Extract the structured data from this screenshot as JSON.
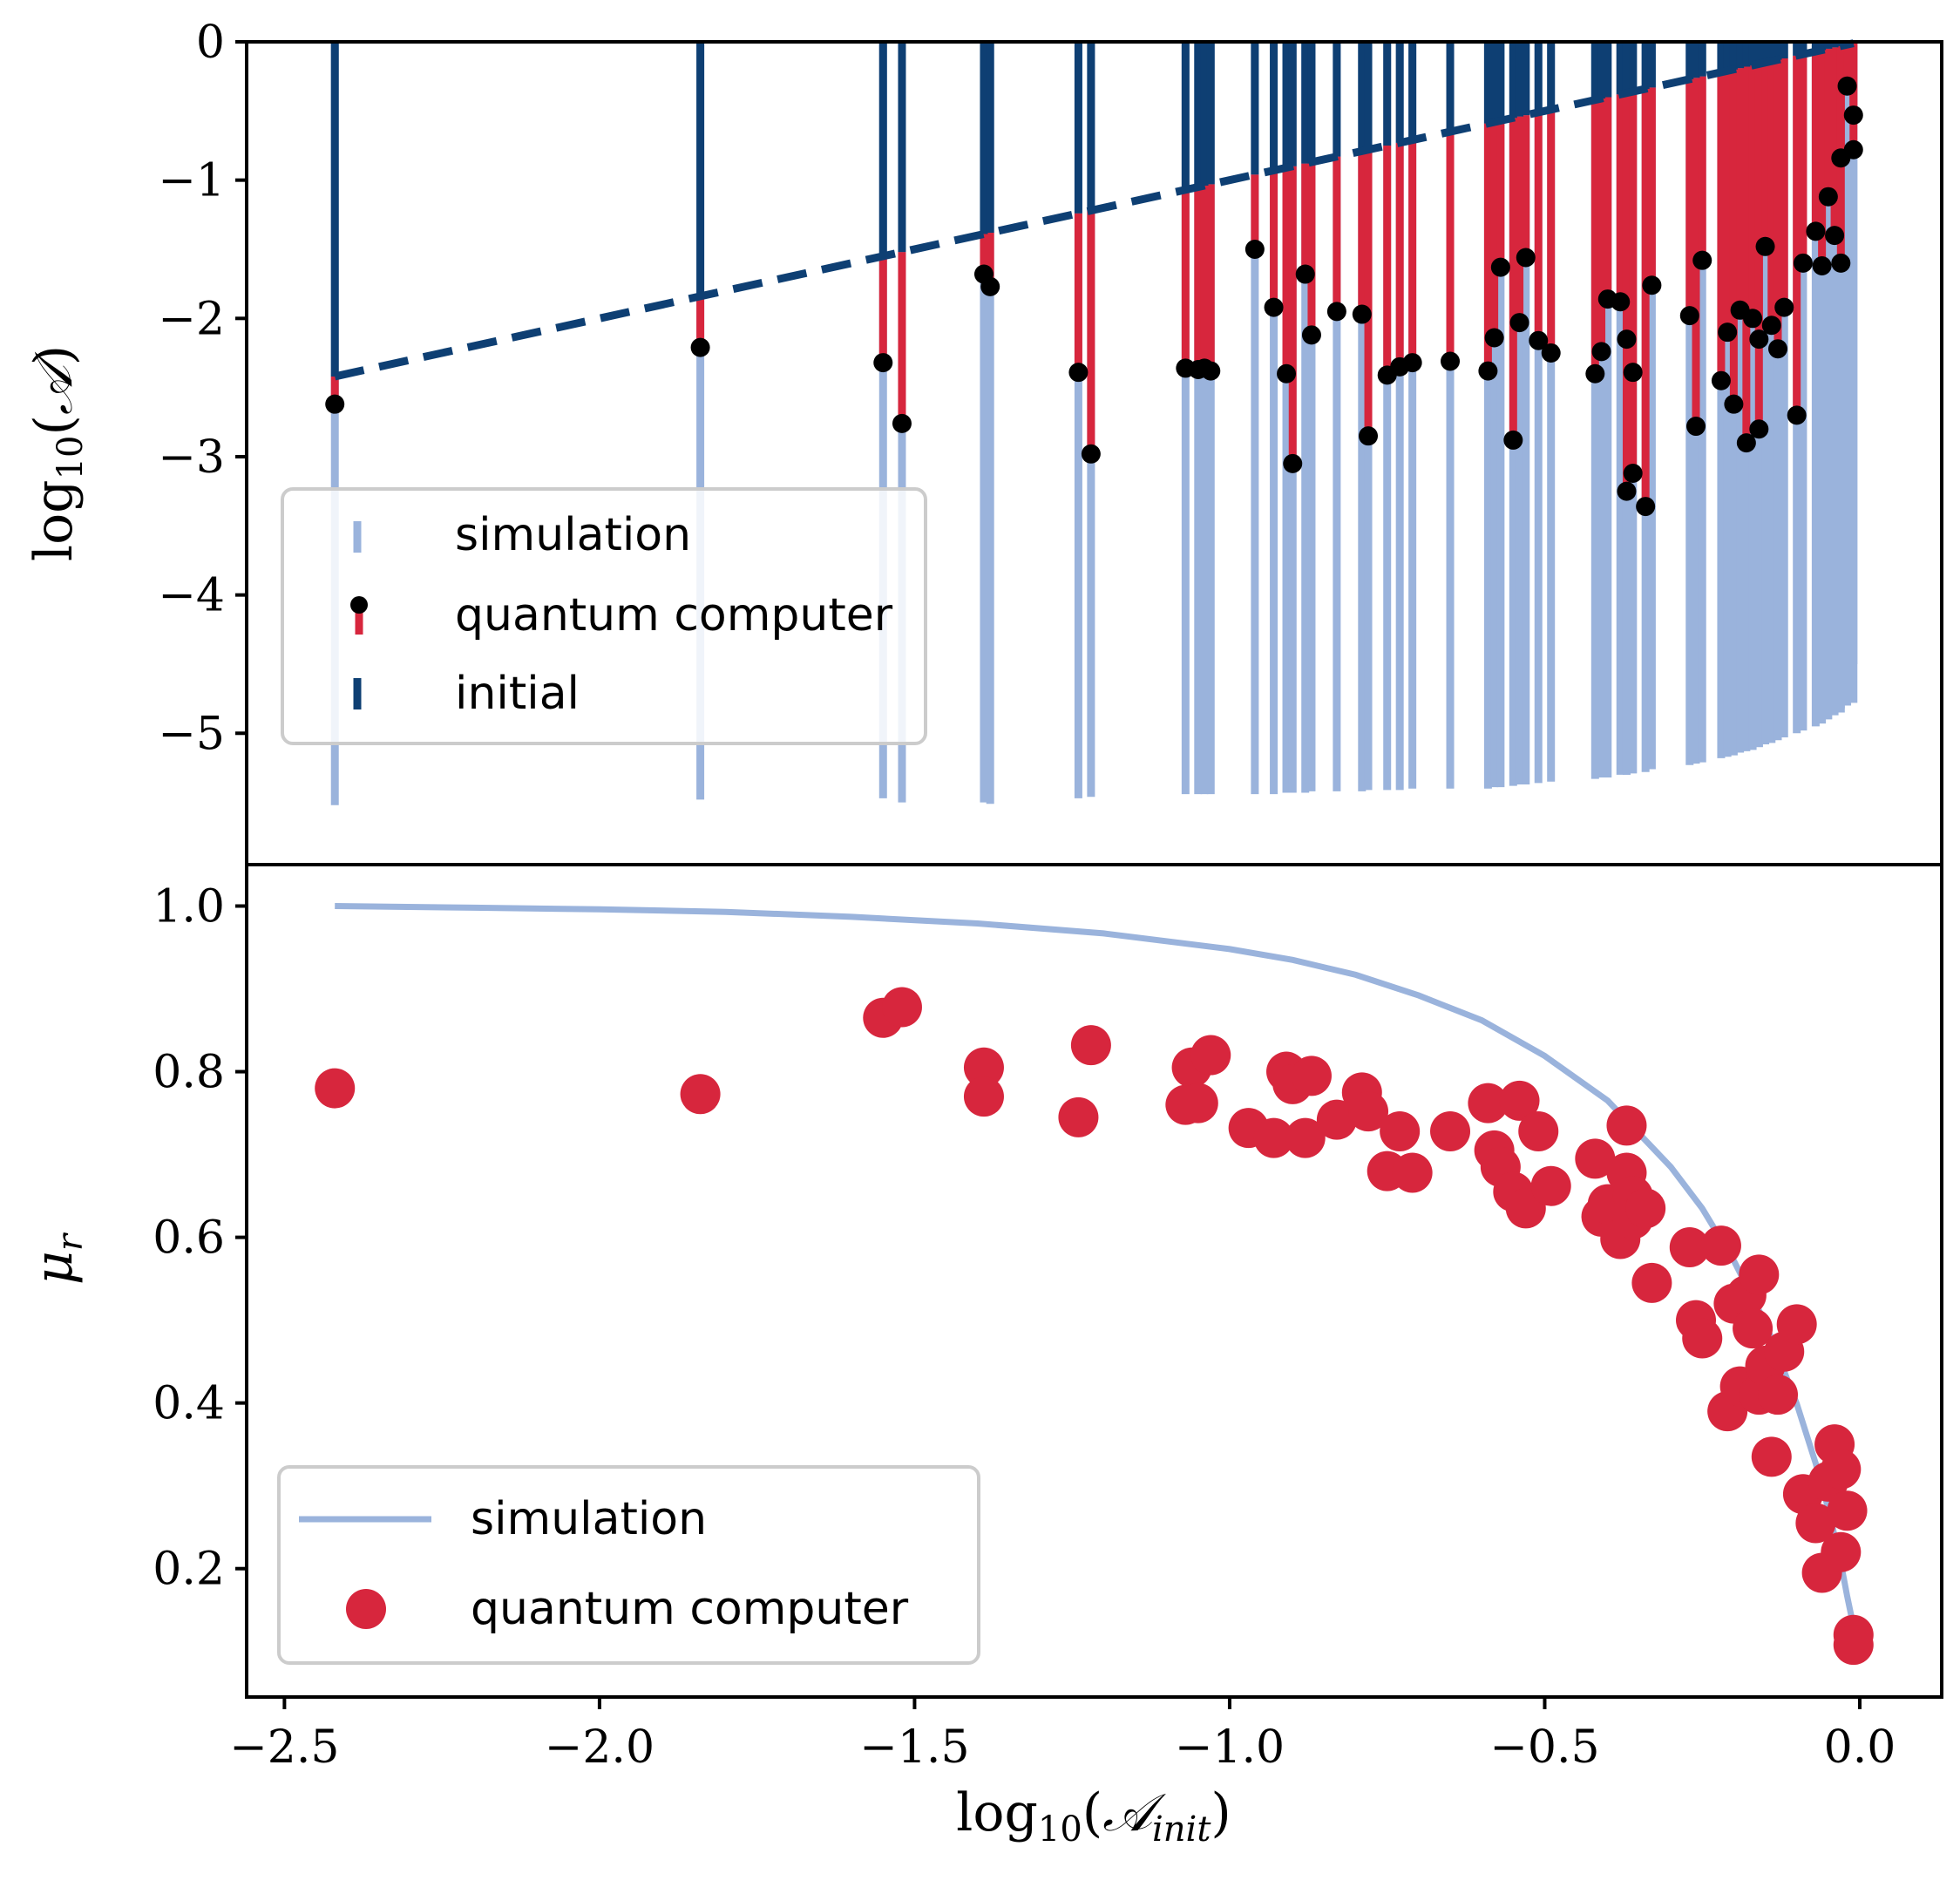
{
  "colors": {
    "simulation": "#9ab3dc",
    "quantum": "#d7263d",
    "initial": "#0e3f73",
    "marker_edge": "#000000",
    "legend_border": "#cccccc"
  },
  "chart_data": [
    {
      "type": "bar",
      "title": "",
      "xlabel": "",
      "ylabel": "log10(A)",
      "xlim": [
        -2.56,
        0.13
      ],
      "ylim": [
        -5.95,
        0
      ],
      "yticks": [
        0,
        -1,
        -2,
        -3,
        -4,
        -5
      ],
      "ytick_labels": [
        "0",
        "−1",
        "−2",
        "−3",
        "−4",
        "−5"
      ],
      "legend": {
        "position": "lower-left",
        "entries": [
          "simulation",
          "quantum computer",
          "initial"
        ]
      },
      "initial_line": {
        "x": [
          -2.42,
          -0.01
        ],
        "y": [
          -2.42,
          -0.01
        ]
      },
      "series_x": [
        -2.42,
        -1.84,
        -1.55,
        -1.52,
        -1.39,
        -1.38,
        -1.24,
        -1.22,
        -1.07,
        -1.05,
        -1.04,
        -1.03,
        -0.96,
        -0.93,
        -0.91,
        -0.9,
        -0.88,
        -0.87,
        -0.83,
        -0.79,
        -0.78,
        -0.75,
        -0.73,
        -0.71,
        -0.65,
        -0.59,
        -0.58,
        -0.57,
        -0.55,
        -0.54,
        -0.53,
        -0.51,
        -0.49,
        -0.42,
        -0.41,
        -0.4,
        -0.38,
        -0.37,
        -0.37,
        -0.36,
        -0.36,
        -0.34,
        -0.33,
        -0.27,
        -0.26,
        -0.25,
        -0.22,
        -0.21,
        -0.2,
        -0.19,
        -0.18,
        -0.17,
        -0.16,
        -0.16,
        -0.15,
        -0.14,
        -0.13,
        -0.12,
        -0.1,
        -0.09,
        -0.07,
        -0.06,
        -0.05,
        -0.04,
        -0.03,
        -0.03,
        -0.02,
        -0.01,
        -0.01
      ],
      "series": [
        {
          "name": "simulation",
          "values": [
            -5.52,
            -5.48,
            -5.47,
            -5.5,
            -5.5,
            -5.51,
            -5.47,
            -5.46,
            -5.44,
            -5.44,
            -5.44,
            -5.44,
            -5.44,
            -5.44,
            -5.43,
            -5.43,
            -5.43,
            -5.42,
            -5.42,
            -5.42,
            -5.41,
            -5.41,
            -5.41,
            -5.4,
            -5.4,
            -5.4,
            -5.39,
            -5.39,
            -5.38,
            -5.37,
            -5.37,
            -5.36,
            -5.35,
            -5.33,
            -5.32,
            -5.32,
            -5.3,
            -5.3,
            -5.3,
            -5.29,
            -5.29,
            -5.28,
            -5.26,
            -5.23,
            -5.22,
            -5.21,
            -5.18,
            -5.17,
            -5.16,
            -5.14,
            -5.13,
            -5.12,
            -5.1,
            -5.1,
            -5.08,
            -5.07,
            -5.05,
            -5.03,
            -5.0,
            -4.98,
            -4.95,
            -4.93,
            -4.9,
            -4.87,
            -4.85,
            -4.82,
            -4.8,
            -4.78,
            -4.5
          ]
        },
        {
          "name": "quantum computer",
          "values": [
            -2.62,
            -2.21,
            -2.32,
            -2.76,
            -1.68,
            -1.77,
            -2.39,
            -2.98,
            -2.36,
            -2.37,
            -2.36,
            -2.38,
            -1.5,
            -1.92,
            -2.4,
            -3.05,
            -1.68,
            -2.12,
            -1.95,
            -1.97,
            -2.85,
            -2.41,
            -2.35,
            -2.32,
            -2.31,
            -2.38,
            -2.14,
            -1.63,
            -2.88,
            -2.03,
            -1.56,
            -2.16,
            -2.25,
            -2.4,
            -2.24,
            -1.86,
            -1.88,
            -2.15,
            -3.25,
            -2.39,
            -3.12,
            -3.36,
            -1.76,
            -1.98,
            -2.78,
            -1.58,
            -2.45,
            -2.1,
            -2.62,
            -1.94,
            -2.9,
            -2.0,
            -2.15,
            -2.8,
            -1.48,
            -2.05,
            -2.22,
            -1.92,
            -2.7,
            -1.6,
            -1.37,
            -1.62,
            -1.12,
            -1.4,
            -0.84,
            -1.6,
            -0.32,
            -0.78,
            -0.53
          ]
        }
      ]
    },
    {
      "type": "line",
      "title": "",
      "xlabel": "log10(A_init)",
      "ylabel": "μr",
      "xlim": [
        -2.56,
        0.13
      ],
      "ylim": [
        0.045,
        1.05
      ],
      "xticks": [
        -2.5,
        -2.0,
        -1.5,
        -1.0,
        -0.5,
        0.0
      ],
      "xtick_labels": [
        "−2.5",
        "−2.0",
        "−1.5",
        "−1.0",
        "−0.5",
        "0.0"
      ],
      "yticks": [
        0.2,
        0.4,
        0.6,
        0.8,
        1.0
      ],
      "ytick_labels": [
        "0.2",
        "0.4",
        "0.6",
        "0.8",
        "1.0"
      ],
      "legend": {
        "position": "lower-left",
        "entries": [
          "simulation",
          "quantum computer"
        ]
      },
      "series": [
        {
          "name": "simulation",
          "kind": "line",
          "x": [
            -2.42,
            -2.2,
            -2.0,
            -1.8,
            -1.6,
            -1.4,
            -1.2,
            -1.0,
            -0.9,
            -0.8,
            -0.7,
            -0.6,
            -0.5,
            -0.4,
            -0.3,
            -0.25,
            -0.2,
            -0.15,
            -0.1,
            -0.07,
            -0.05,
            -0.03,
            -0.02,
            -0.01
          ],
          "y": [
            1.0,
            0.998,
            0.996,
            0.993,
            0.987,
            0.979,
            0.967,
            0.948,
            0.935,
            0.917,
            0.892,
            0.862,
            0.819,
            0.765,
            0.685,
            0.635,
            0.572,
            0.497,
            0.399,
            0.327,
            0.272,
            0.207,
            0.167,
            0.13
          ]
        },
        {
          "name": "quantum computer",
          "kind": "scatter",
          "x": [
            -2.42,
            -1.84,
            -1.55,
            -1.52,
            -1.39,
            -1.39,
            -1.24,
            -1.22,
            -1.07,
            -1.06,
            -1.05,
            -1.03,
            -0.97,
            -0.93,
            -0.91,
            -0.9,
            -0.88,
            -0.87,
            -0.83,
            -0.79,
            -0.78,
            -0.75,
            -0.73,
            -0.71,
            -0.65,
            -0.59,
            -0.58,
            -0.57,
            -0.55,
            -0.54,
            -0.53,
            -0.51,
            -0.49,
            -0.42,
            -0.41,
            -0.4,
            -0.38,
            -0.37,
            -0.37,
            -0.36,
            -0.36,
            -0.34,
            -0.33,
            -0.27,
            -0.26,
            -0.25,
            -0.22,
            -0.21,
            -0.2,
            -0.19,
            -0.18,
            -0.17,
            -0.16,
            -0.16,
            -0.15,
            -0.14,
            -0.13,
            -0.12,
            -0.1,
            -0.09,
            -0.07,
            -0.06,
            -0.05,
            -0.04,
            -0.03,
            -0.03,
            -0.02,
            -0.01,
            -0.01
          ],
          "y": [
            0.78,
            0.773,
            0.865,
            0.878,
            0.805,
            0.77,
            0.745,
            0.832,
            0.76,
            0.805,
            0.762,
            0.82,
            0.732,
            0.72,
            0.8,
            0.785,
            0.72,
            0.795,
            0.742,
            0.775,
            0.752,
            0.68,
            0.728,
            0.678,
            0.728,
            0.762,
            0.705,
            0.685,
            0.655,
            0.765,
            0.635,
            0.728,
            0.662,
            0.695,
            0.625,
            0.64,
            0.598,
            0.735,
            0.678,
            0.65,
            0.622,
            0.635,
            0.545,
            0.588,
            0.5,
            0.478,
            0.59,
            0.39,
            0.52,
            0.42,
            0.53,
            0.49,
            0.555,
            0.41,
            0.445,
            0.335,
            0.41,
            0.462,
            0.495,
            0.29,
            0.255,
            0.195,
            0.305,
            0.35,
            0.22,
            0.32,
            0.27,
            0.12,
            0.108
          ]
        }
      ]
    }
  ]
}
